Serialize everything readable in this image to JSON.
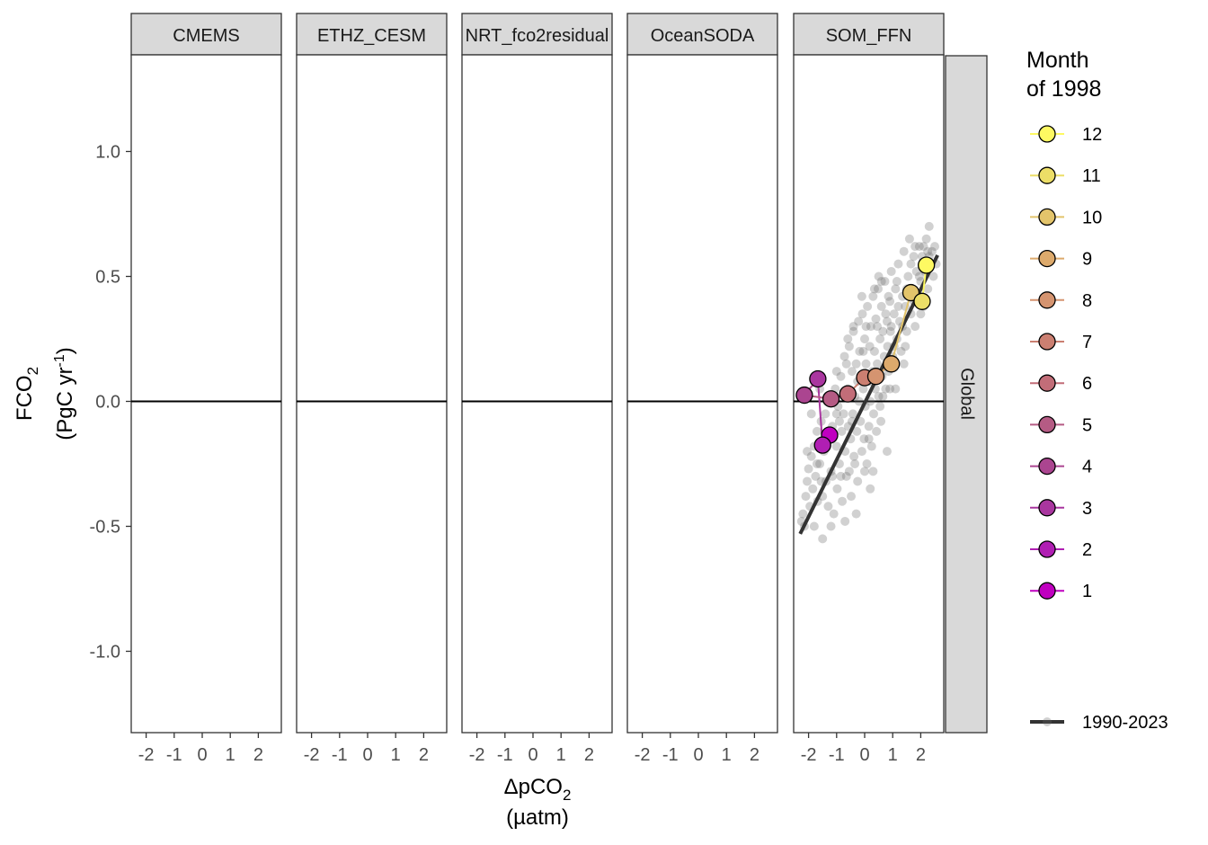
{
  "chart_data": {
    "type": "scatter",
    "panels": [
      "CMEMS",
      "ETHZ_CESM",
      "NRT_fco2residual",
      "OceanSODA",
      "SOM_FFN"
    ],
    "strip_right": "Global",
    "xlabel": "ΔpCO",
    "xlabel_sub": "2",
    "xunits": "(µatm)",
    "ylabel": "FCO",
    "ylabel_sub": "2",
    "yunits_prefix": "(PgC yr",
    "yunits_sup": "-1",
    "yunits_suffix": ")",
    "xlim": [
      -2.6,
      2.8
    ],
    "ylim": [
      -1.32,
      1.4
    ],
    "xticks": [
      -2,
      -1,
      0,
      1,
      2
    ],
    "xtick_labels": [
      "-2",
      "-1",
      "0",
      "1",
      "2"
    ],
    "yticks": [
      1.0,
      0.5,
      0.0,
      -0.5,
      -1.0
    ],
    "ytick_labels": [
      "1.0",
      "0.5",
      "0.0",
      "-0.5",
      "-1.0"
    ],
    "hline": 0,
    "legend_title_line1": "Month",
    "legend_title_line2": "of 1998",
    "legend_position": "right",
    "months": [
      {
        "label": "1",
        "x": -1.25,
        "y": -0.135,
        "color": "#c000c0"
      },
      {
        "label": "2",
        "x": -1.5,
        "y": -0.175,
        "color": "#b01fb3"
      },
      {
        "label": "3",
        "x": -1.67,
        "y": 0.09,
        "color": "#a9369f"
      },
      {
        "label": "4",
        "x": -2.15,
        "y": 0.025,
        "color": "#ab4590"
      },
      {
        "label": "5",
        "x": -1.2,
        "y": 0.01,
        "color": "#b55b84"
      },
      {
        "label": "6",
        "x": -0.6,
        "y": 0.03,
        "color": "#c26d78"
      },
      {
        "label": "7",
        "x": 0.0,
        "y": 0.095,
        "color": "#cb7f71"
      },
      {
        "label": "8",
        "x": 0.4,
        "y": 0.1,
        "color": "#d59470"
      },
      {
        "label": "9",
        "x": 0.95,
        "y": 0.15,
        "color": "#ddaa6c"
      },
      {
        "label": "10",
        "x": 1.65,
        "y": 0.435,
        "color": "#e3c46b"
      },
      {
        "label": "11",
        "x": 2.05,
        "y": 0.4,
        "color": "#ecde67"
      },
      {
        "label": "12",
        "x": 2.2,
        "y": 0.545,
        "color": "#fef962"
      }
    ],
    "fit_label": "1990-2023",
    "fit_line": {
      "x": [
        -2.3,
        2.6
      ],
      "y": [
        -0.53,
        0.585
      ]
    },
    "scatter_color": "#666666",
    "scatter_points": [
      [
        -2.25,
        -0.48
      ],
      [
        -2.2,
        -0.45
      ],
      [
        -2.1,
        -0.38
      ],
      [
        -2.05,
        -0.32
      ],
      [
        -2.0,
        -0.27
      ],
      [
        -1.95,
        -0.42
      ],
      [
        -1.9,
        -0.22
      ],
      [
        -1.85,
        -0.35
      ],
      [
        -1.8,
        -0.18
      ],
      [
        -1.75,
        -0.3
      ],
      [
        -1.7,
        -0.12
      ],
      [
        -1.68,
        -0.4
      ],
      [
        -1.6,
        -0.25
      ],
      [
        -1.55,
        -0.08
      ],
      [
        -1.5,
        -0.55
      ],
      [
        -1.45,
        -0.2
      ],
      [
        -1.4,
        -0.05
      ],
      [
        -1.38,
        -0.32
      ],
      [
        -1.3,
        -0.15
      ],
      [
        -1.25,
        0.02
      ],
      [
        -1.2,
        -0.28
      ],
      [
        -1.15,
        -0.1
      ],
      [
        -1.1,
        -0.45
      ],
      [
        -1.05,
        0.05
      ],
      [
        -1.0,
        -0.18
      ],
      [
        -0.98,
        -0.35
      ],
      [
        -0.95,
        -0.02
      ],
      [
        -0.9,
        -0.25
      ],
      [
        -0.85,
        0.1
      ],
      [
        -0.82,
        -0.12
      ],
      [
        -0.8,
        -0.4
      ],
      [
        -0.75,
        -0.05
      ],
      [
        -0.72,
        0.18
      ],
      [
        -0.7,
        -0.2
      ],
      [
        -0.65,
        -0.3
      ],
      [
        -0.6,
        0.05
      ],
      [
        -0.58,
        -0.1
      ],
      [
        -0.55,
        0.22
      ],
      [
        -0.5,
        -0.15
      ],
      [
        -0.48,
        -0.38
      ],
      [
        -0.45,
        0.12
      ],
      [
        -0.42,
        -0.05
      ],
      [
        -0.4,
        0.28
      ],
      [
        -0.38,
        -0.22
      ],
      [
        -0.35,
        0.02
      ],
      [
        -0.3,
        0.15
      ],
      [
        -0.28,
        -0.12
      ],
      [
        -0.25,
        -0.32
      ],
      [
        -0.22,
        0.32
      ],
      [
        -0.2,
        0.0
      ],
      [
        -0.18,
        0.2
      ],
      [
        -0.15,
        -0.08
      ],
      [
        -0.12,
        0.1
      ],
      [
        -0.1,
        -0.2
      ],
      [
        -0.08,
        0.35
      ],
      [
        -0.05,
        0.05
      ],
      [
        -0.02,
        -0.15
      ],
      [
        0.0,
        0.25
      ],
      [
        0.02,
        -0.02
      ],
      [
        0.05,
        0.15
      ],
      [
        0.08,
        -0.25
      ],
      [
        0.1,
        0.38
      ],
      [
        0.12,
        0.08
      ],
      [
        0.15,
        -0.1
      ],
      [
        0.18,
        0.22
      ],
      [
        0.2,
        0.0
      ],
      [
        0.22,
        0.3
      ],
      [
        0.25,
        -0.18
      ],
      [
        0.28,
        0.12
      ],
      [
        0.3,
        0.42
      ],
      [
        0.32,
        -0.05
      ],
      [
        0.35,
        0.2
      ],
      [
        0.38,
        0.05
      ],
      [
        0.4,
        0.33
      ],
      [
        0.42,
        -0.12
      ],
      [
        0.45,
        0.15
      ],
      [
        0.48,
        0.45
      ],
      [
        0.5,
        0.02
      ],
      [
        0.55,
        0.25
      ],
      [
        0.58,
        -0.08
      ],
      [
        0.6,
        0.38
      ],
      [
        0.62,
        0.1
      ],
      [
        0.65,
        0.28
      ],
      [
        0.7,
        0.18
      ],
      [
        0.72,
        0.48
      ],
      [
        0.75,
        0.05
      ],
      [
        0.8,
        0.32
      ],
      [
        0.82,
        0.22
      ],
      [
        0.85,
        0.12
      ],
      [
        0.9,
        0.4
      ],
      [
        0.92,
        0.28
      ],
      [
        0.95,
        0.52
      ],
      [
        1.0,
        0.18
      ],
      [
        1.05,
        0.35
      ],
      [
        1.1,
        0.45
      ],
      [
        1.15,
        0.25
      ],
      [
        1.2,
        0.55
      ],
      [
        1.25,
        0.32
      ],
      [
        1.3,
        0.2
      ],
      [
        1.35,
        0.42
      ],
      [
        1.4,
        0.6
      ],
      [
        1.45,
        0.38
      ],
      [
        1.5,
        0.28
      ],
      [
        1.55,
        0.5
      ],
      [
        1.6,
        0.65
      ],
      [
        1.65,
        0.35
      ],
      [
        1.7,
        0.45
      ],
      [
        1.75,
        0.58
      ],
      [
        1.8,
        0.3
      ],
      [
        1.85,
        0.52
      ],
      [
        1.9,
        0.42
      ],
      [
        1.95,
        0.62
      ],
      [
        2.0,
        0.48
      ],
      [
        2.05,
        0.58
      ],
      [
        2.1,
        0.38
      ],
      [
        2.15,
        0.52
      ],
      [
        2.2,
        0.65
      ],
      [
        2.25,
        0.45
      ],
      [
        2.3,
        0.7
      ],
      [
        2.35,
        0.55
      ],
      [
        2.4,
        0.6
      ],
      [
        2.45,
        0.5
      ],
      [
        2.5,
        0.62
      ],
      [
        2.55,
        0.55
      ],
      [
        -1.9,
        -0.05
      ],
      [
        -1.6,
        0.05
      ],
      [
        -1.3,
        -0.42
      ],
      [
        -1.0,
        0.12
      ],
      [
        -0.7,
        -0.48
      ],
      [
        -0.4,
        0.3
      ],
      [
        -0.1,
        0.42
      ],
      [
        0.2,
        -0.35
      ],
      [
        0.5,
        0.5
      ],
      [
        0.8,
        -0.2
      ],
      [
        1.1,
        0.05
      ],
      [
        1.4,
        0.15
      ],
      [
        -2.15,
        -0.5
      ],
      [
        -1.8,
        -0.5
      ],
      [
        -1.5,
        -0.38
      ],
      [
        -1.2,
        -0.5
      ],
      [
        -0.9,
        -0.08
      ],
      [
        -0.6,
        0.25
      ],
      [
        -0.3,
        -0.45
      ],
      [
        0.0,
        -0.28
      ],
      [
        0.3,
        -0.28
      ],
      [
        0.6,
        0.48
      ],
      [
        0.9,
        0.05
      ],
      [
        1.2,
        0.38
      ],
      [
        1.5,
        0.45
      ],
      [
        1.8,
        0.62
      ],
      [
        2.1,
        0.62
      ],
      [
        -2.05,
        -0.2
      ],
      [
        -1.7,
        -0.25
      ],
      [
        -1.35,
        0.0
      ],
      [
        -1.0,
        -0.05
      ],
      [
        -0.65,
        0.15
      ],
      [
        -0.35,
        -0.25
      ],
      [
        -0.05,
        0.2
      ],
      [
        0.25,
        0.08
      ],
      [
        0.55,
        -0.02
      ],
      [
        0.85,
        0.42
      ],
      [
        1.15,
        0.48
      ],
      [
        1.45,
        0.22
      ],
      [
        1.75,
        0.4
      ],
      [
        2.0,
        0.35
      ],
      [
        2.3,
        0.58
      ],
      [
        -0.55,
        -0.28
      ],
      [
        -0.25,
        0.08
      ],
      [
        0.05,
        0.3
      ],
      [
        0.35,
        0.45
      ],
      [
        0.65,
        0.02
      ],
      [
        0.95,
        0.3
      ],
      [
        -1.15,
        -0.3
      ],
      [
        -0.85,
        -0.3
      ],
      [
        -0.45,
        -0.08
      ],
      [
        0.15,
        -0.15
      ],
      [
        0.45,
        0.3
      ],
      [
        0.75,
        0.35
      ],
      [
        1.05,
        0.22
      ],
      [
        1.35,
        0.3
      ],
      [
        1.65,
        0.55
      ],
      [
        1.95,
        0.5
      ],
      [
        2.25,
        0.6
      ],
      [
        -1.55,
        -0.32
      ]
    ]
  }
}
